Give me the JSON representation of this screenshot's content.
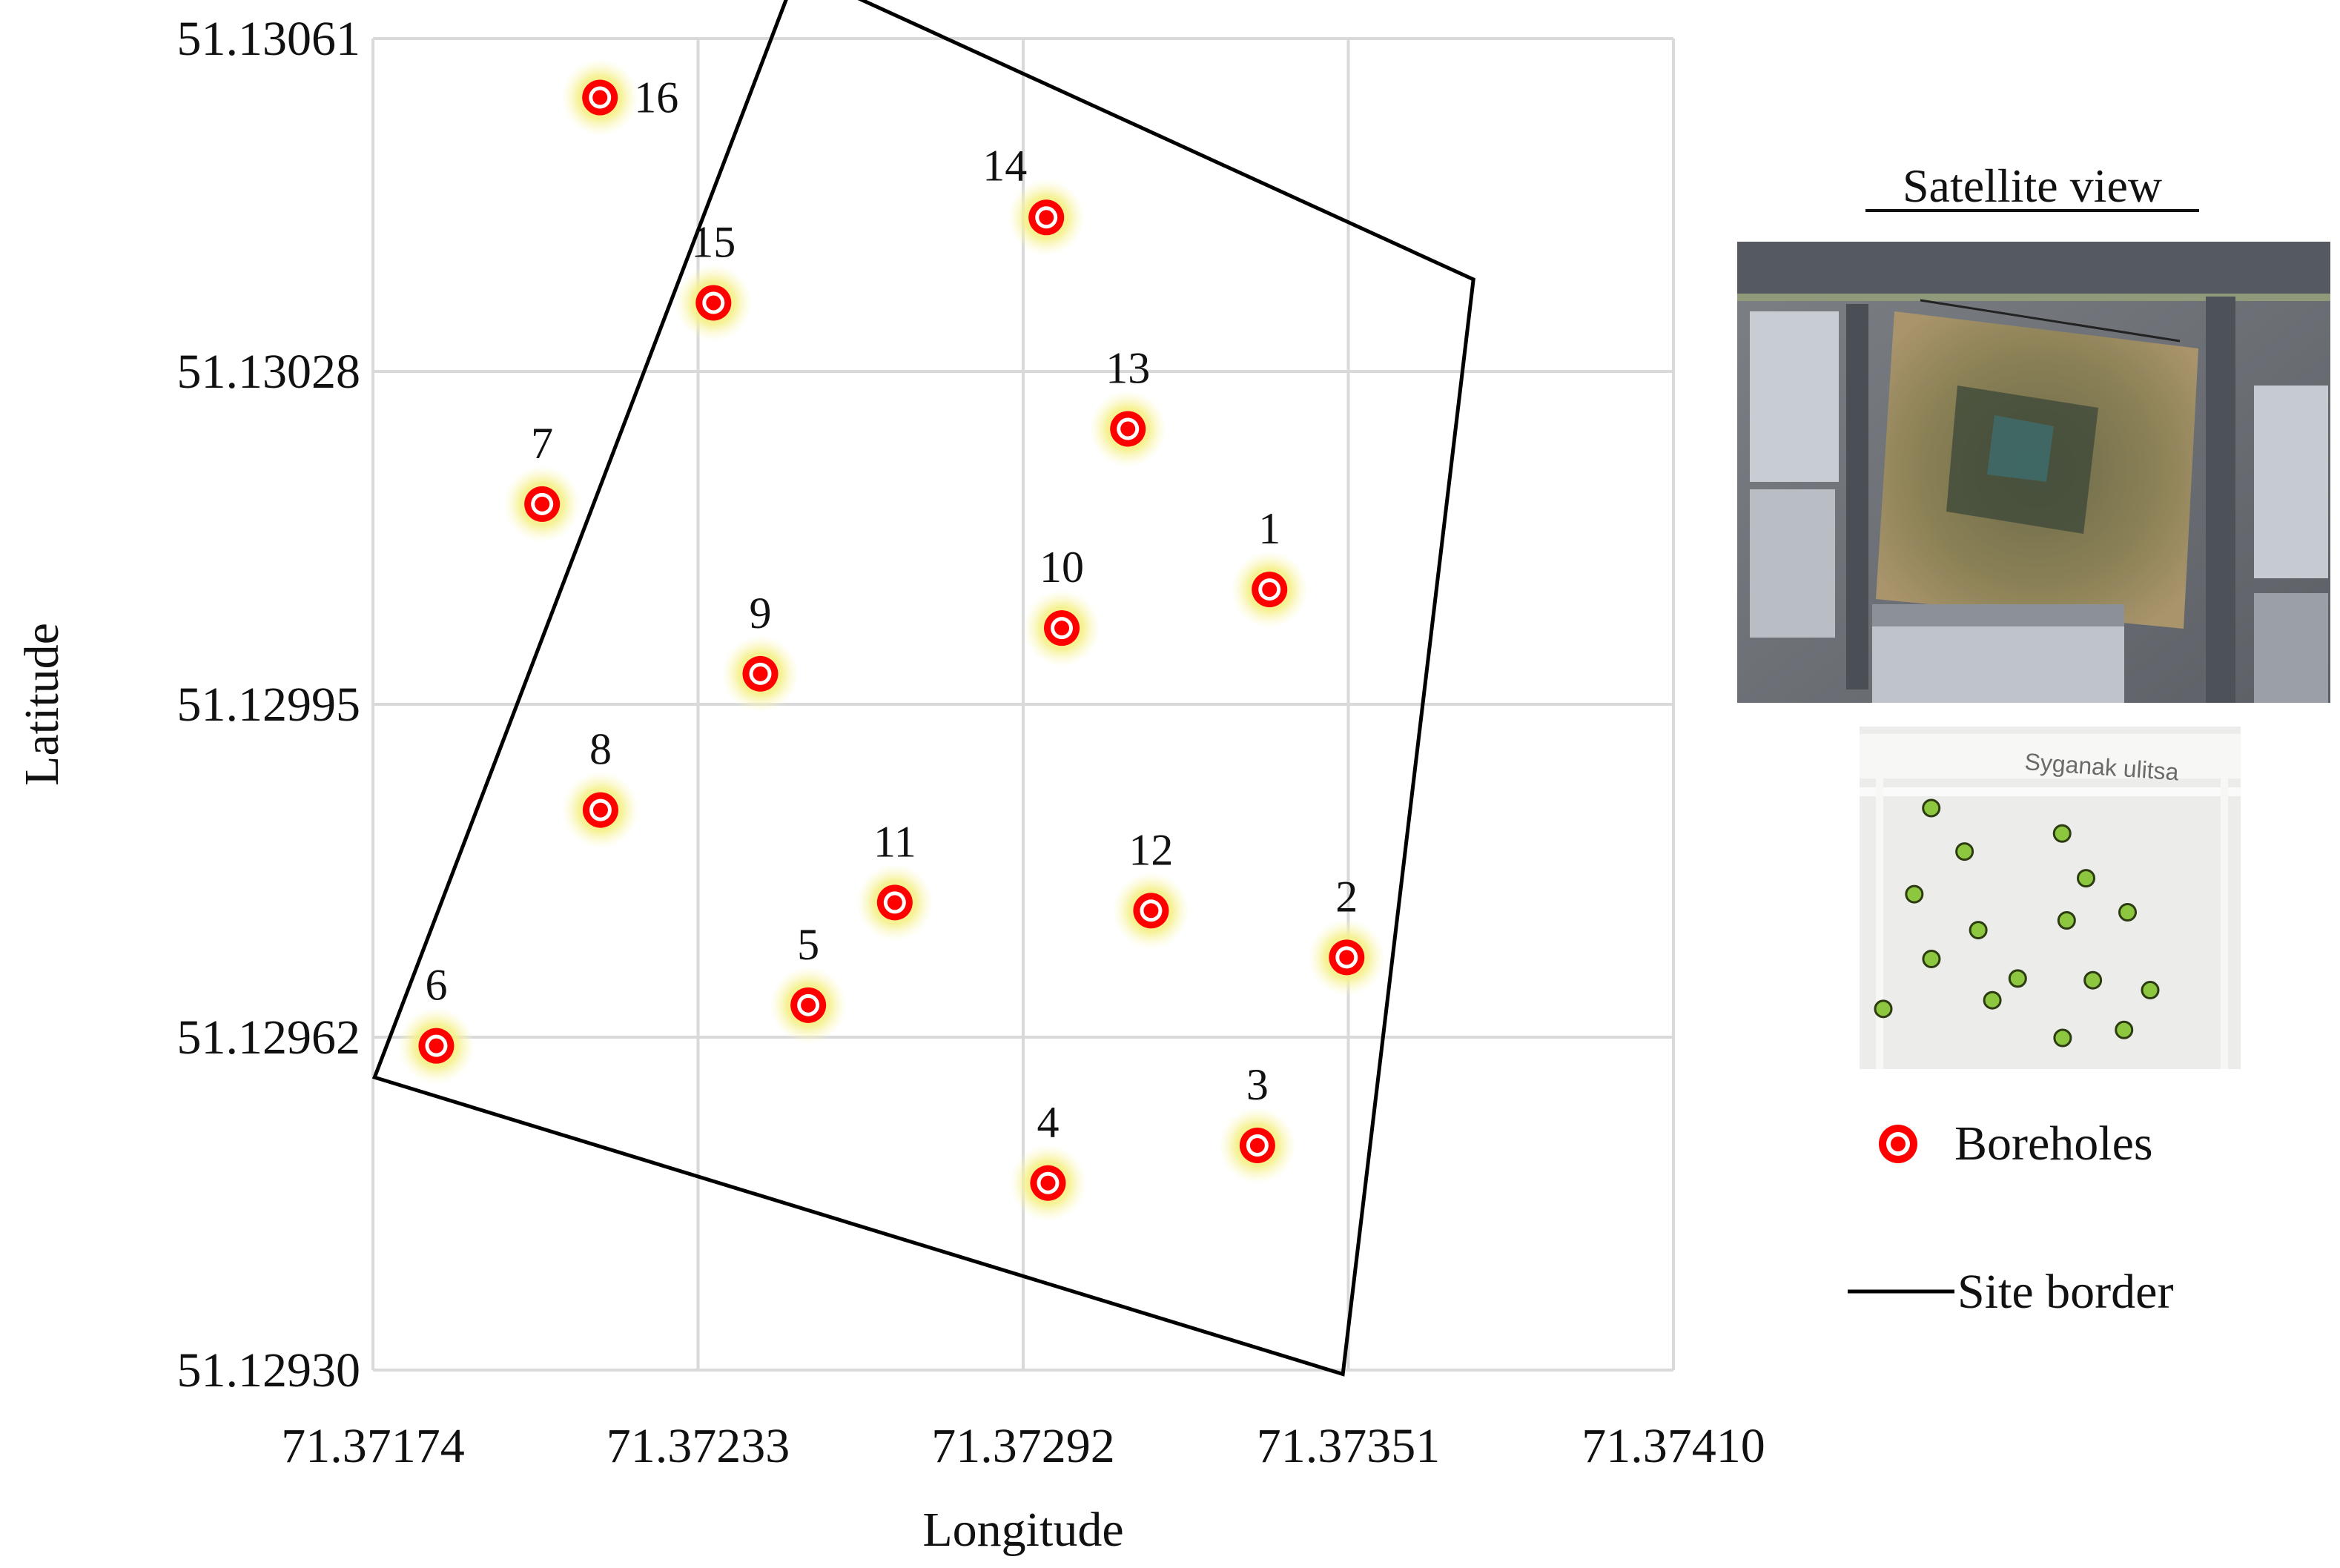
{
  "chart_data": {
    "type": "scatter",
    "title": "",
    "xlabel": "Longitude",
    "ylabel": "Latitude",
    "xlim": [
      71.37174,
      71.3741
    ],
    "ylim": [
      51.1293,
      51.13061
    ],
    "x_ticks": [
      "71.37174",
      "71.37233",
      "71.37292",
      "71.37351",
      "71.37410"
    ],
    "y_ticks": [
      "51.12930",
      "51.12962",
      "51.12995",
      "51.13028",
      "51.13061"
    ],
    "grid": true,
    "series": [
      {
        "name": "Boreholes",
        "marker_color": "#ff0000",
        "glow_color": "#f5f08a",
        "points": [
          {
            "label": "1",
            "x": 71.373367,
            "y": 51.130068
          },
          {
            "label": "2",
            "x": 71.373507,
            "y": 51.129706
          },
          {
            "label": "3",
            "x": 71.373345,
            "y": 51.129521
          },
          {
            "label": "4",
            "x": 71.372965,
            "y": 51.129484
          },
          {
            "label": "5",
            "x": 71.37253,
            "y": 51.129659
          },
          {
            "label": "6",
            "x": 71.371855,
            "y": 51.129619
          },
          {
            "label": "7",
            "x": 71.372047,
            "y": 51.130152
          },
          {
            "label": "8",
            "x": 71.372153,
            "y": 51.129851
          },
          {
            "label": "9",
            "x": 71.372443,
            "y": 51.129985
          },
          {
            "label": "10",
            "x": 71.37299,
            "y": 51.13003
          },
          {
            "label": "11",
            "x": 71.372687,
            "y": 51.12976
          },
          {
            "label": "12",
            "x": 71.373152,
            "y": 51.129752
          },
          {
            "label": "13",
            "x": 71.37311,
            "y": 51.130226
          },
          {
            "label": "14",
            "x": 71.372962,
            "y": 51.130434
          },
          {
            "label": "15",
            "x": 71.372358,
            "y": 51.13035
          },
          {
            "label": "16",
            "x": 71.372152,
            "y": 51.130552
          }
        ]
      },
      {
        "name": "Site border",
        "line_color": "#000000",
        "polygon": [
          {
            "x": 71.37251,
            "y": 51.130677
          },
          {
            "x": 71.373737,
            "y": 51.130373
          },
          {
            "x": 71.3735,
            "y": 51.129296
          },
          {
            "x": 71.371743,
            "y": 51.129588
          }
        ]
      }
    ],
    "legend": {
      "placement": "right",
      "items": [
        {
          "label": "Boreholes",
          "symbol": "borehole-marker"
        },
        {
          "label": "Site border",
          "symbol": "line"
        }
      ]
    }
  },
  "inset": {
    "title": "Satellite view",
    "street_label": "Syganak ulitsa",
    "scheme_dot_color": "#8dc63f"
  }
}
